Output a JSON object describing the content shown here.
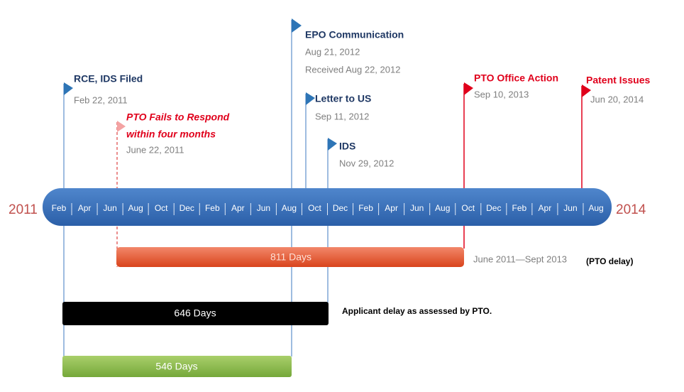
{
  "timeline": {
    "start_year": "2011",
    "end_year": "2014",
    "months": [
      "Feb",
      "Apr",
      "Jun",
      "Aug",
      "Oct",
      "Dec",
      "Feb",
      "Apr",
      "Jun",
      "Aug",
      "Oct",
      "Dec",
      "Feb",
      "Apr",
      "Jun",
      "Aug",
      "Oct",
      "Dec",
      "Feb",
      "Apr",
      "Jun",
      "Aug"
    ]
  },
  "events": [
    {
      "title": "RCE, IDS Filed",
      "date": "Feb 22, 2011"
    },
    {
      "title_lines": [
        "PTO Fails to Respond",
        "within four months"
      ],
      "date": "June 22, 2011"
    },
    {
      "title": "EPO Communication",
      "date": "Aug 21, 2012",
      "received": "Received Aug 22, 2012"
    },
    {
      "title": "Letter to US",
      "date": "Sep 11, 2012"
    },
    {
      "title": "IDS",
      "date": "Nov 29, 2012"
    },
    {
      "title": "PTO Office Action",
      "date": "Sep 10, 2013"
    },
    {
      "title": "Patent Issues",
      "date": "Jun 20, 2014"
    }
  ],
  "bars": [
    {
      "label": "811 Days",
      "note": "June 2011—Sept 2013",
      "caption": "(PTO delay)"
    },
    {
      "label": "646 Days",
      "caption": "Applicant delay as assessed by PTO."
    },
    {
      "label": "546 Days"
    }
  ]
}
